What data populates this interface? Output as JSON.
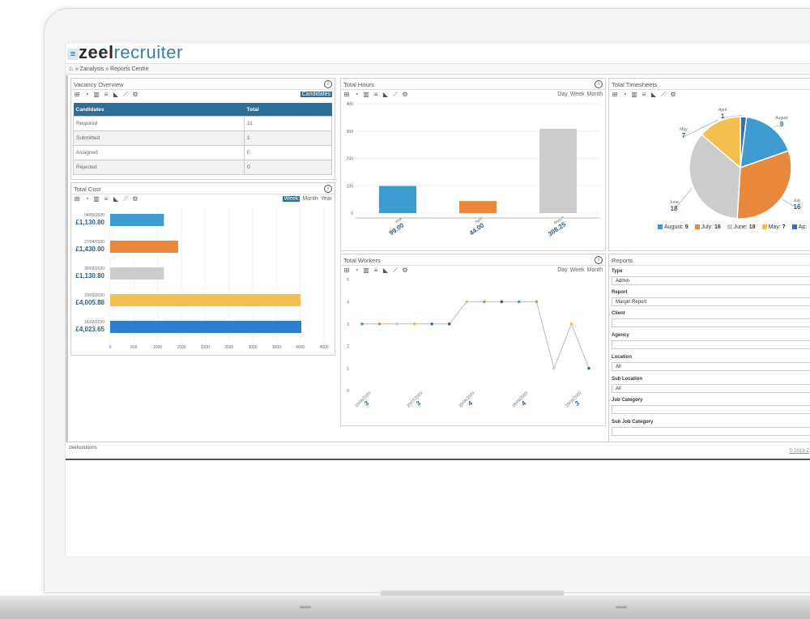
{
  "app": {
    "logo_part1": "zeel",
    "logo_part2": "recruiter",
    "menu_icon": "≡"
  },
  "breadcrumb": {
    "text": "» Zanalysis » Reports Centre"
  },
  "vacancy": {
    "title": "Vacancy Overview",
    "toggle": "Candidates",
    "columns": [
      "Candidates",
      "Total"
    ],
    "rows": [
      {
        "name": "Required",
        "total": "11"
      },
      {
        "name": "Submitted",
        "total": "1"
      },
      {
        "name": "Assigned",
        "total": "0"
      },
      {
        "name": "Rejected",
        "total": "0"
      }
    ]
  },
  "total_cost": {
    "title": "Total Cost",
    "periods": [
      "Week",
      "Month",
      "Year"
    ],
    "active_period": "Week",
    "colors": [
      "#3d9bd0",
      "#e9883a",
      "#cccccc",
      "#f4bf4f",
      "#2f7dd0"
    ]
  },
  "total_hours": {
    "title": "Total Hours",
    "periods": [
      "Day",
      "Week",
      "Month"
    ]
  },
  "total_timesheets": {
    "title": "Total Timesheets"
  },
  "total_workers": {
    "title": "Total Workers",
    "periods": [
      "Day",
      "Week",
      "Month"
    ]
  },
  "reports": {
    "title": "Reports",
    "fields": [
      {
        "label": "Type",
        "value": "Admin"
      },
      {
        "label": "Report",
        "value": "Margin Report"
      },
      {
        "label": "Client",
        "value": ""
      },
      {
        "label": "Agency",
        "value": ""
      },
      {
        "label": "Location",
        "value": "All"
      },
      {
        "label": "Sub Location",
        "value": "All"
      },
      {
        "label": "Job Category",
        "value": ""
      },
      {
        "label": "Sub Job Category",
        "value": ""
      }
    ]
  },
  "footer": {
    "logo_text": "zeelsolutions",
    "copyright": "© 2019 Z"
  },
  "chart_data": [
    {
      "type": "bar",
      "orientation": "horizontal",
      "panel": "Total Cost",
      "categories": [
        "04/05/2020",
        "27/04/2020",
        "30/03/2020",
        "23/03/2020",
        "16/03/2020"
      ],
      "values": [
        1130.8,
        1430.0,
        1130.8,
        4005.88,
        4023.65
      ],
      "value_labels": [
        "£1,130.80",
        "£1,430.00",
        "£1,130.80",
        "£4,005.88",
        "£4,023.65"
      ],
      "xlim": [
        0,
        4500
      ],
      "xticks": [
        0,
        500,
        1000,
        1500,
        2000,
        2500,
        3000,
        3500,
        4000,
        4500
      ],
      "colors": [
        "#3d9bd0",
        "#e9883a",
        "#cccccc",
        "#f4bf4f",
        "#2f7dd0"
      ]
    },
    {
      "type": "bar",
      "panel": "Total Hours",
      "categories": [
        "Year",
        "April",
        "March"
      ],
      "values": [
        99.0,
        44.0,
        308.25
      ],
      "value_labels": [
        "99.00",
        "44.00",
        "308.25"
      ],
      "ylim": [
        0,
        400
      ],
      "yticks": [
        0,
        100,
        200,
        300,
        400
      ],
      "colors": [
        "#3d9bd0",
        "#e9883a",
        "#cccccc"
      ]
    },
    {
      "type": "pie",
      "panel": "Total Timesheets",
      "labels": [
        "April",
        "August",
        "July",
        "June",
        "May"
      ],
      "values": [
        1,
        9,
        16,
        18,
        7
      ],
      "colors": [
        "#2f6fbe",
        "#3d9bd0",
        "#e9883a",
        "#cccccc",
        "#f4bf4f"
      ],
      "legend": [
        {
          "label": "August",
          "value": "9",
          "color": "#3d9bd0"
        },
        {
          "label": "July",
          "value": "16",
          "color": "#e9883a"
        },
        {
          "label": "June",
          "value": "18",
          "color": "#cccccc"
        },
        {
          "label": "May",
          "value": "7",
          "color": "#f4bf4f"
        },
        {
          "label": "Ap",
          "value": "",
          "color": "#2f6fbe"
        }
      ]
    },
    {
      "type": "line",
      "panel": "Total Workers",
      "values": [
        3,
        3,
        3,
        3,
        3,
        3,
        4,
        4,
        4,
        4,
        4,
        1,
        3,
        1
      ],
      "point_colors": [
        "#3d9bd0",
        "#e9883a",
        "#cccccc",
        "#f4bf4f",
        "#2f6fbe",
        "#555555",
        "#f4bf4f",
        "#e9883a",
        "#555555",
        "#3d9bd0",
        "#e9883a",
        "#cccccc",
        "#f4bf4f",
        "#2f6fbe"
      ],
      "ylim": [
        0,
        5
      ],
      "yticks": [
        0,
        1,
        2,
        3,
        4,
        5
      ],
      "x_tick_labels": [
        {
          "date": "10/06/2020",
          "value": "3"
        },
        {
          "date": "20/07/2020",
          "value": "3"
        },
        {
          "date": "29/06/2020",
          "value": "4"
        },
        {
          "date": "08/06/2020",
          "value": "4"
        },
        {
          "date": "18/05/2020",
          "value": "3"
        }
      ]
    }
  ]
}
